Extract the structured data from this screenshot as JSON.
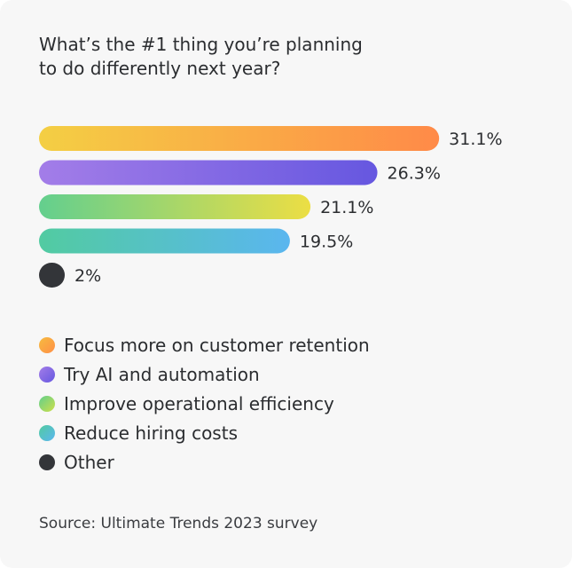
{
  "header": {
    "title_line1": "What’s the #1 thing you’re planning",
    "title_line2": "to do differently next year?"
  },
  "chart_data": {
    "type": "bar",
    "orientation": "horizontal",
    "categories": [
      "Focus more on customer retention",
      "Try AI and automation",
      "Improve operational efficiency",
      "Reduce hiring costs",
      "Other"
    ],
    "values": [
      31.1,
      26.3,
      21.1,
      19.5,
      2
    ],
    "labels": [
      "31.1%",
      "26.3%",
      "21.1%",
      "19.5%",
      "2%"
    ],
    "gradients": [
      [
        "#f4cf44",
        "#ff8a48"
      ],
      [
        "#a37de8",
        "#6657e0"
      ],
      [
        "#63cf8e",
        "#ecde44"
      ],
      [
        "#52cba1",
        "#5ab6ef"
      ],
      [
        "#333539",
        "#333539"
      ]
    ],
    "xlim": [
      0,
      33.5
    ],
    "grid": false,
    "legend": "bottom"
  },
  "legend": [
    {
      "label": "Focus more on customer retention",
      "colors": [
        "#f6bb3f",
        "#ff8f47"
      ]
    },
    {
      "label": "Try AI and automation",
      "colors": [
        "#a37de8",
        "#6657e0"
      ]
    },
    {
      "label": "Improve operational efficiency",
      "colors": [
        "#62cf8c",
        "#cddf4a"
      ]
    },
    {
      "label": "Reduce hiring costs",
      "colors": [
        "#52cba1",
        "#5ab6ef"
      ]
    },
    {
      "label": "Other",
      "colors": [
        "#333539",
        "#333539"
      ]
    }
  ],
  "footer": {
    "source": "Source: Ultimate Trends 2023 survey"
  }
}
